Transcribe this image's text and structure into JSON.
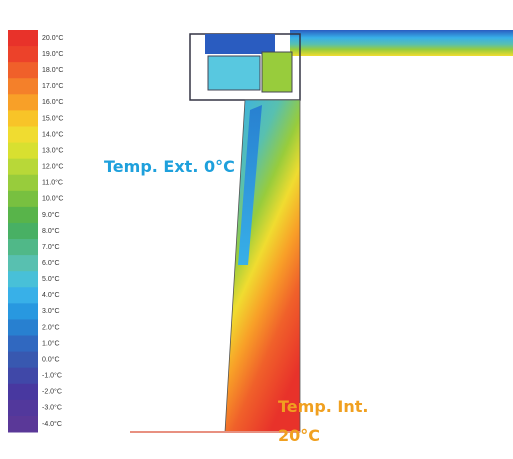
{
  "legend": {
    "labels": [
      "20.0°C",
      "19.0°C",
      "18.0°C",
      "17.0°C",
      "16.0°C",
      "15.0°C",
      "14.0°C",
      "13.0°C",
      "12.0°C",
      "11.0°C",
      "10.0°C",
      "9.0°C",
      "8.0°C",
      "7.0°C",
      "6.0°C",
      "5.0°C",
      "4.0°C",
      "3.0°C",
      "2.0°C",
      "1.0°C",
      "0.0°C",
      "-1.0°C",
      "-2.0°C",
      "-3.0°C",
      "-4.0°C"
    ],
    "colors": [
      "#e8322a",
      "#ec422a",
      "#f0602a",
      "#f4802a",
      "#f8a028",
      "#f8c428",
      "#f0dc30",
      "#d8e030",
      "#b8d838",
      "#98cc3c",
      "#78c040",
      "#58b44a",
      "#48b064",
      "#50b888",
      "#58c0b0",
      "#48c0d8",
      "#38b0e8",
      "#2898e0",
      "#2880d0",
      "#3068c0",
      "#3858b0",
      "#4048a8",
      "#4838a0",
      "#52389c",
      "#5a3898"
    ]
  },
  "annotations": {
    "exterior": "Temp. Ext. 0°C",
    "interior_line1": "Temp. Int.",
    "interior_line2": "20°C"
  }
}
